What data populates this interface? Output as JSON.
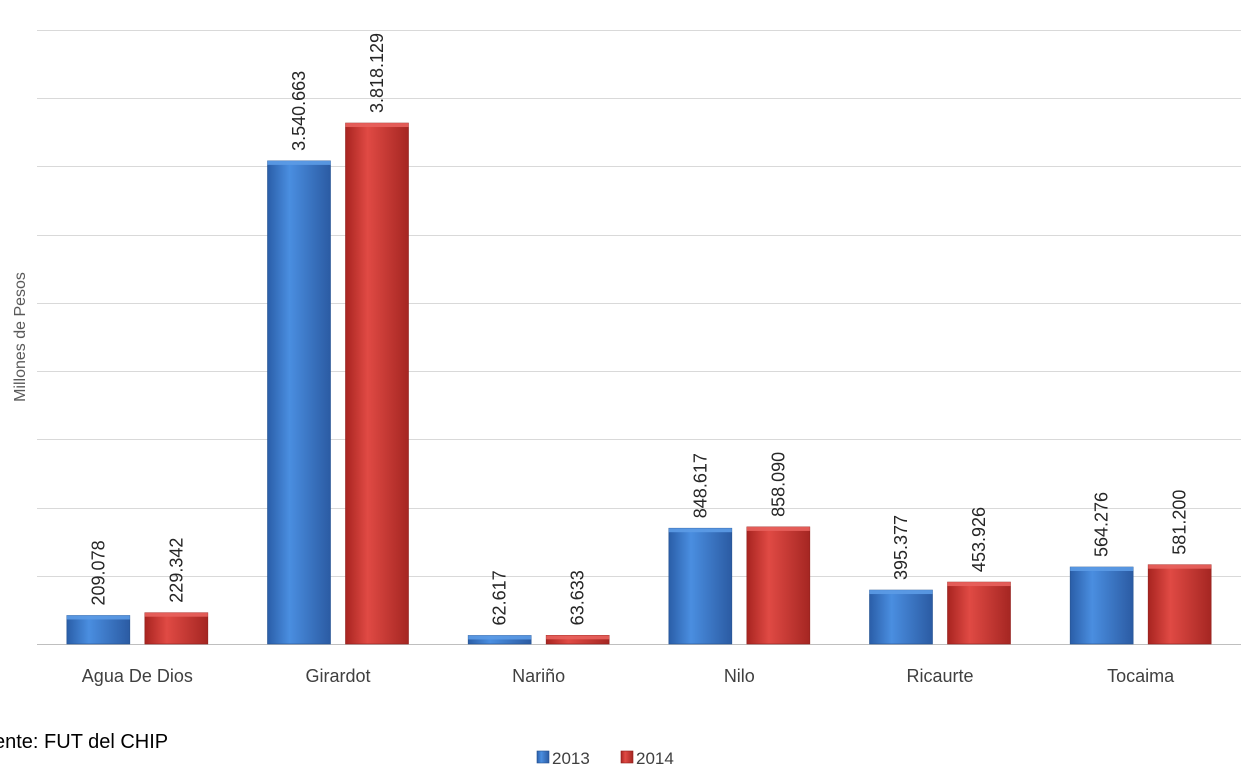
{
  "chart_data": {
    "type": "bar",
    "ylabel": "Millones de Pesos",
    "xlabel": "",
    "categories": [
      "Agua De Dios",
      "Girardot",
      "Nariño",
      "Nilo",
      "Ricaurte",
      "Tocaima"
    ],
    "series": [
      {
        "name": "2013",
        "color": "#3a78c9",
        "values": [
          209078,
          3540663,
          62617,
          848617,
          395377,
          564276
        ],
        "labels": [
          "209.078",
          "3.540.663",
          "62.617",
          "848.617",
          "395.377",
          "564.276"
        ]
      },
      {
        "name": "2014",
        "color": "#c9302c",
        "values": [
          229342,
          3818129,
          63633,
          858090,
          453926,
          581200
        ],
        "labels": [
          "229.342",
          "3.818.129",
          "63.633",
          "858.090",
          "453.926",
          "581.200"
        ]
      }
    ],
    "ylim": [
      0,
      4500000
    ],
    "grid": true,
    "y_tick_labels_shown": false,
    "legend_position": "bottom",
    "data_labels": "rotated vertical above bars"
  },
  "source_text": "ente: FUT  del CHIP"
}
